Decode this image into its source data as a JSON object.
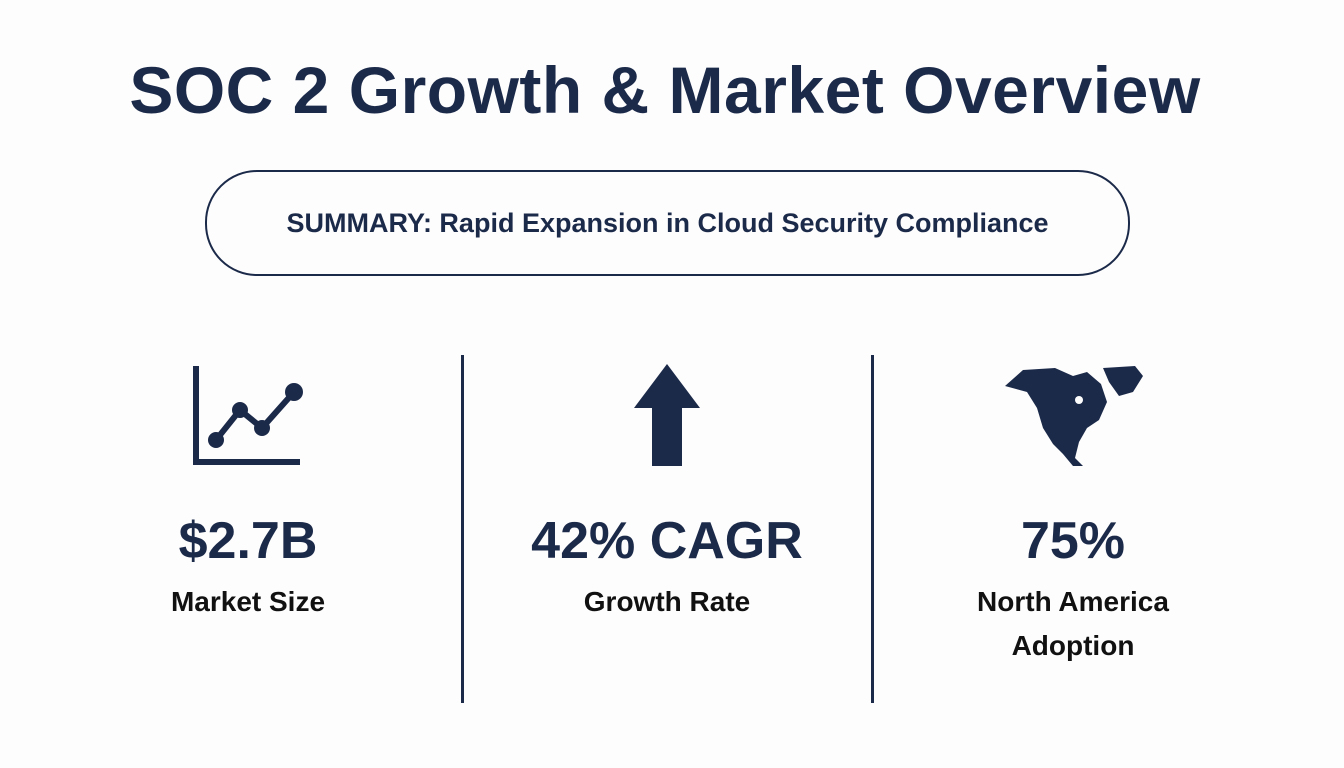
{
  "title": "SOC 2 Growth & Market Overview",
  "summary": "SUMMARY: Rapid Expansion in Cloud Security Compliance",
  "accent_color": "#1c2a4a",
  "stats": [
    {
      "icon": "line-chart-icon",
      "value": "$2.7B",
      "label": "Market Size"
    },
    {
      "icon": "arrow-up-icon",
      "value": "42% CAGR",
      "label": "Growth Rate"
    },
    {
      "icon": "north-america-map-icon",
      "value": "75%",
      "label": "North America Adoption"
    }
  ]
}
